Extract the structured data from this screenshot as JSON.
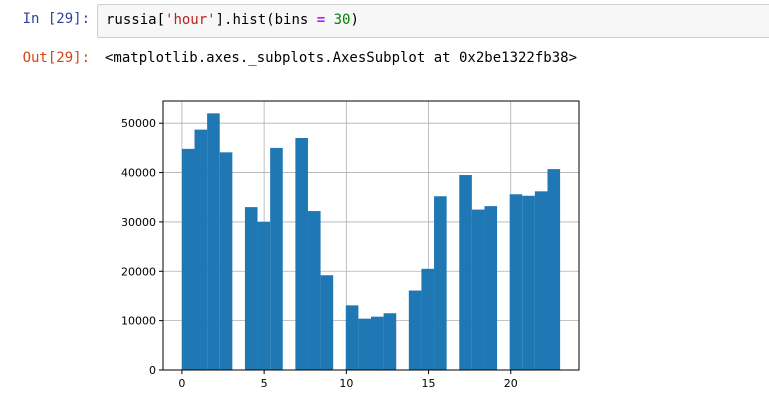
{
  "cell_in": {
    "prompt": "In [29]:",
    "code_parts": {
      "var": "russia[",
      "str": "'hour'",
      "mid": "].hist(bins ",
      "op": "=",
      "sp": " ",
      "num": "30",
      "end": ")"
    }
  },
  "cell_out": {
    "prompt": "Out[29]:",
    "text": "<matplotlib.axes._subplots.AxesSubplot at 0x2be1322fb38>"
  },
  "colors": {
    "bar": "#1f77b4",
    "grid": "#b0b0b0"
  },
  "chart_data": {
    "type": "bar",
    "xlim": [
      -1.15,
      24.15
    ],
    "ylim": [
      0,
      54500
    ],
    "xticks": [
      0,
      5,
      10,
      15,
      20
    ],
    "yticks": [
      0,
      10000,
      20000,
      30000,
      40000,
      50000
    ],
    "grid": true,
    "bin_width": 0.7667,
    "bin_edges_start": 0,
    "values": [
      44800,
      48700,
      52000,
      44100,
      0,
      33000,
      30000,
      45000,
      0,
      47000,
      32200,
      19200,
      0,
      13100,
      10400,
      10800,
      11500,
      0,
      16100,
      20500,
      35200,
      0,
      39500,
      32500,
      33200,
      0,
      35600,
      35300,
      36200,
      40700
    ]
  }
}
